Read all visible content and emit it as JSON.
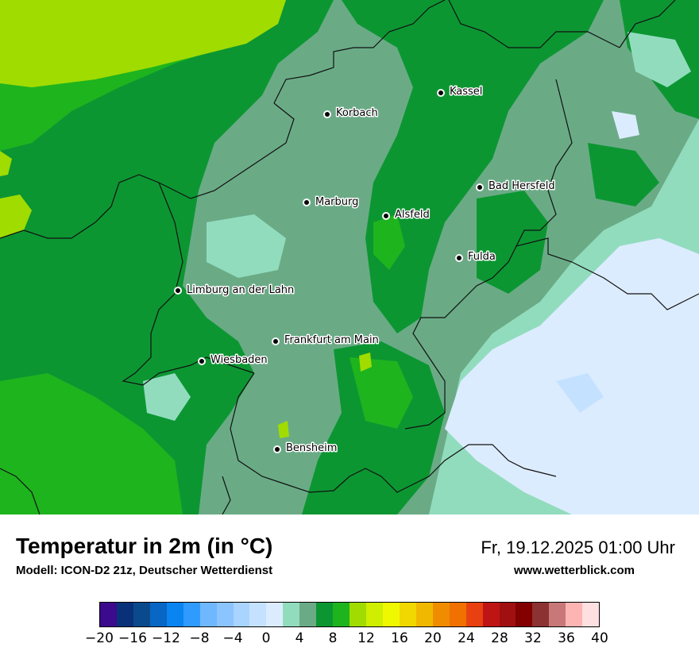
{
  "title": "Temperatur in 2m (in °C)",
  "subtitle": "Modell: ICON-D2 21z, Deutscher Wetterdienst",
  "datetime": "Fr, 19.12.2025 01:00 Uhr",
  "website": "www.wetterblick.com",
  "cities": [
    {
      "name": "Kassel",
      "label": "Kassel"
    },
    {
      "name": "Korbach",
      "label": "Korbach"
    },
    {
      "name": "Bad Hersfeld",
      "label": "Bad Hersfeld"
    },
    {
      "name": "Marburg",
      "label": "Marburg"
    },
    {
      "name": "Alsfeld",
      "label": "Alsfeld"
    },
    {
      "name": "Fulda",
      "label": "Fulda"
    },
    {
      "name": "Limburg an der Lahn",
      "label": "Limburg an der Lahn"
    },
    {
      "name": "Frankfurt am Main",
      "label": "Frankfurt am Main"
    },
    {
      "name": "Wiesbaden",
      "label": "Wiesbaden"
    },
    {
      "name": "Bensheim",
      "label": "Bensheim"
    }
  ],
  "legend": {
    "min": -20,
    "max": 40,
    "step": 2,
    "tick_labels": [
      "−20",
      "−16",
      "−12",
      "−8",
      "−4",
      "0",
      "4",
      "8",
      "12",
      "16",
      "20",
      "24",
      "28",
      "32",
      "36",
      "40"
    ],
    "tick_values": [
      -20,
      -16,
      -12,
      -8,
      -4,
      0,
      4,
      8,
      12,
      16,
      20,
      24,
      28,
      32,
      36,
      40
    ],
    "colors": [
      "#3c0a8c",
      "#08317a",
      "#0a4a8c",
      "#0866c4",
      "#0a84f0",
      "#2f9bff",
      "#6fb8ff",
      "#8cc4ff",
      "#a8d4ff",
      "#c4e2ff",
      "#dcecff",
      "#92dcbe",
      "#6aab86",
      "#0c9632",
      "#1eb41e",
      "#a0dc00",
      "#cfee00",
      "#f0f800",
      "#f0d800",
      "#f0b800",
      "#f08c00",
      "#f07000",
      "#e84010",
      "#be1414",
      "#a01010",
      "#820000",
      "#8c3232",
      "#c87878",
      "#ffb4b4",
      "#ffe0e0"
    ]
  }
}
